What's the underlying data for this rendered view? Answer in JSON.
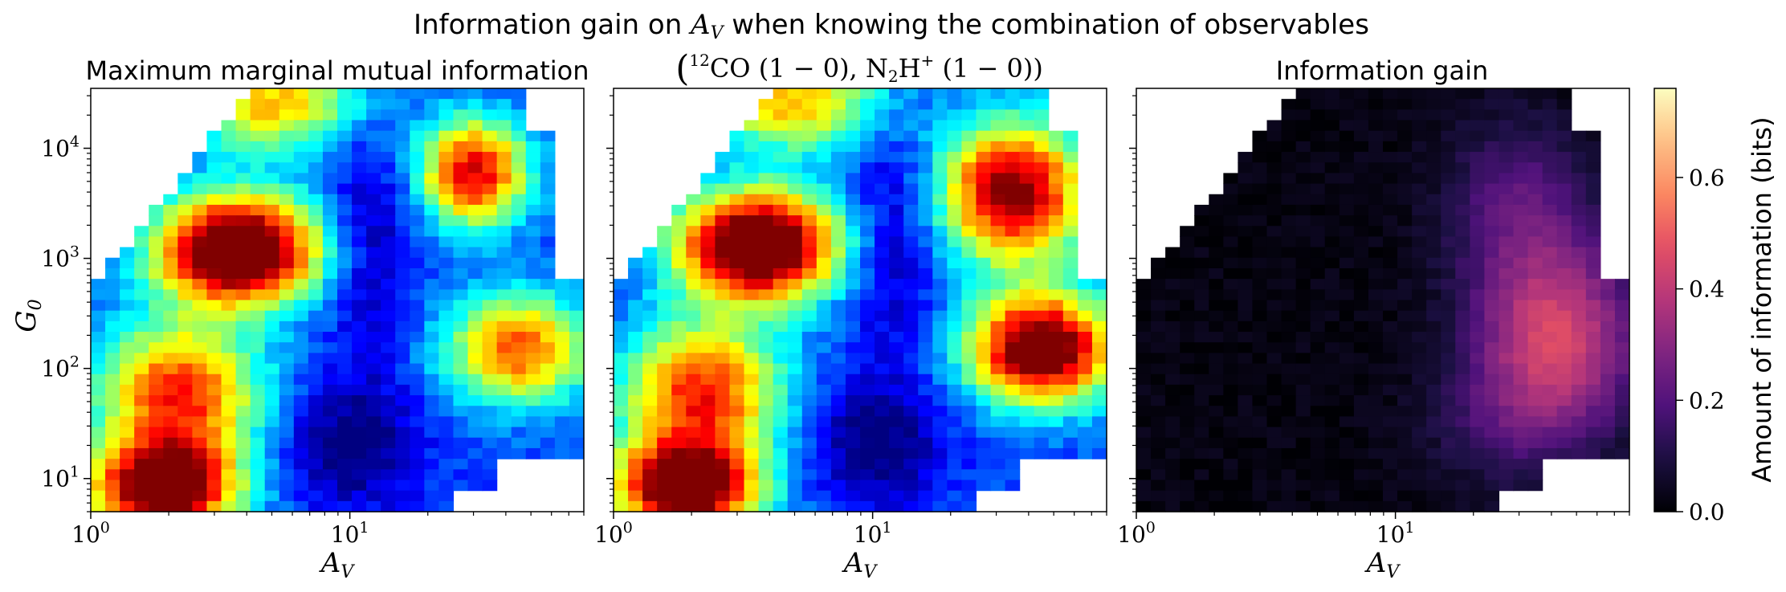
{
  "figure": {
    "suptitle_prefix": "Information gain on ",
    "suptitle_var_main": "A",
    "suptitle_var_sub": "V",
    "suptitle_suffix": " when knowing the combination of observables"
  },
  "chart_data": [
    {
      "type": "heatmap",
      "title": "Maximum marginal mutual information",
      "xlabel_main": "A",
      "xlabel_sub": "V",
      "ylabel_main": "G",
      "ylabel_sub": "0",
      "x_scale": "log",
      "y_scale": "log",
      "xlim": [
        1,
        80
      ],
      "ylim": [
        5,
        35000
      ],
      "x_ticks": [
        {
          "value": 1,
          "base": "10",
          "exp": "0"
        },
        {
          "value": 10,
          "base": "10",
          "exp": "1"
        }
      ],
      "y_ticks": [
        {
          "value": 10,
          "base": "10",
          "exp": "1"
        },
        {
          "value": 100,
          "base": "10",
          "exp": "2"
        },
        {
          "value": 1000,
          "base": "10",
          "exp": "3"
        },
        {
          "value": 10000,
          "base": "10",
          "exp": "4"
        }
      ],
      "colormap": "jet",
      "value_range": [
        0.55,
        1.45
      ],
      "features": [
        {
          "x": 3.7,
          "y": 1200,
          "peak": 0.95,
          "sx": 0.22,
          "sy": 0.35
        },
        {
          "x": 1.9,
          "y": 8,
          "peak": 0.85,
          "sx": 0.2,
          "sy": 0.3
        },
        {
          "x": 2.2,
          "y": 60,
          "peak": 0.6,
          "sx": 0.22,
          "sy": 0.45
        },
        {
          "x": 30,
          "y": 6000,
          "peak": 0.65,
          "sx": 0.15,
          "sy": 0.35
        },
        {
          "x": 45,
          "y": 150,
          "peak": 0.55,
          "sx": 0.2,
          "sy": 0.35
        },
        {
          "x": 5,
          "y": 25000,
          "peak": 0.45,
          "sx": 0.25,
          "sy": 0.3
        },
        {
          "x": 12,
          "y": 1500,
          "peak": -0.15,
          "sx": 0.12,
          "sy": 0.8
        },
        {
          "x": 10,
          "y": 20,
          "peak": -0.2,
          "sx": 0.18,
          "sy": 0.4
        }
      ]
    },
    {
      "type": "heatmap",
      "title_prefix": "(",
      "title_sup1": "12",
      "title_mid1": "CO (1 − 0), N",
      "title_sub1": "2",
      "title_mid2": "H",
      "title_sup2": "+",
      "title_suffix": " (1 − 0))",
      "xlabel_main": "A",
      "xlabel_sub": "V",
      "x_scale": "log",
      "y_scale": "log",
      "xlim": [
        1,
        80
      ],
      "ylim": [
        5,
        35000
      ],
      "x_ticks": [
        {
          "value": 1,
          "base": "10",
          "exp": "0"
        },
        {
          "value": 10,
          "base": "10",
          "exp": "1"
        }
      ],
      "colormap": "jet",
      "value_range": [
        0.55,
        1.45
      ],
      "features": [
        {
          "x": 3.6,
          "y": 1300,
          "peak": 0.95,
          "sx": 0.22,
          "sy": 0.35
        },
        {
          "x": 1.9,
          "y": 8,
          "peak": 0.85,
          "sx": 0.2,
          "sy": 0.3
        },
        {
          "x": 2.2,
          "y": 60,
          "peak": 0.6,
          "sx": 0.22,
          "sy": 0.45
        },
        {
          "x": 35,
          "y": 4000,
          "peak": 0.75,
          "sx": 0.2,
          "sy": 0.45
        },
        {
          "x": 45,
          "y": 150,
          "peak": 0.85,
          "sx": 0.2,
          "sy": 0.35
        },
        {
          "x": 5,
          "y": 25000,
          "peak": 0.45,
          "sx": 0.25,
          "sy": 0.3
        },
        {
          "x": 12,
          "y": 1500,
          "peak": -0.15,
          "sx": 0.12,
          "sy": 0.8
        },
        {
          "x": 10,
          "y": 20,
          "peak": -0.2,
          "sx": 0.18,
          "sy": 0.4
        }
      ]
    },
    {
      "type": "heatmap",
      "title": "Information gain",
      "xlabel_main": "A",
      "xlabel_sub": "V",
      "x_scale": "log",
      "y_scale": "log",
      "xlim": [
        1,
        80
      ],
      "ylim": [
        5,
        35000
      ],
      "x_ticks": [
        {
          "value": 1,
          "base": "10",
          "exp": "0"
        },
        {
          "value": 10,
          "base": "10",
          "exp": "1"
        }
      ],
      "colormap": "magma",
      "value_range": [
        0,
        0.76
      ],
      "features": [
        {
          "x": 42,
          "y": 180,
          "peak": 0.42,
          "sx": 0.22,
          "sy": 0.6
        },
        {
          "x": 30,
          "y": 3000,
          "peak": 0.18,
          "sx": 0.2,
          "sy": 0.55
        },
        {
          "x": 25,
          "y": 30,
          "peak": 0.1,
          "sx": 0.2,
          "sy": 0.4
        }
      ],
      "colorbar": {
        "label": "Amount of information (bits)",
        "min": 0,
        "max": 0.76,
        "ticks": [
          "0.0",
          "0.2",
          "0.4",
          "0.6"
        ],
        "tick_values": [
          0,
          0.2,
          0.4,
          0.6
        ]
      }
    }
  ]
}
